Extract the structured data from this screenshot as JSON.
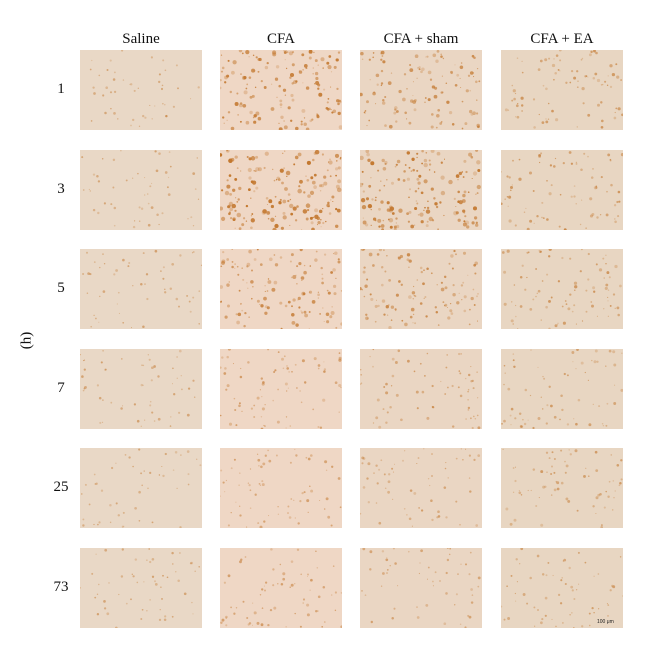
{
  "figure": {
    "columns": [
      {
        "label": "Saline",
        "name": "saline"
      },
      {
        "label": "CFA",
        "name": "cfa"
      },
      {
        "label": "CFA + sham",
        "name": "cfa-sham"
      },
      {
        "label": "CFA + EA",
        "name": "cfa-ea"
      }
    ],
    "rows": [
      {
        "label": "1"
      },
      {
        "label": "3"
      },
      {
        "label": "5"
      },
      {
        "label": "7"
      },
      {
        "label": "25"
      },
      {
        "label": "73"
      }
    ],
    "axis_unit": "(h)",
    "scale_bar": "100 μm",
    "panel_background": [
      "#e9d8c6",
      "#efd7c5",
      "#ead6c3",
      "#e8d6c2"
    ],
    "stain_color": "#c3782f",
    "stain_intensity": [
      [
        0.15,
        0.85,
        0.65,
        0.4
      ],
      [
        0.18,
        1.0,
        0.95,
        0.38
      ],
      [
        0.18,
        0.7,
        0.6,
        0.42
      ],
      [
        0.2,
        0.35,
        0.3,
        0.3
      ],
      [
        0.15,
        0.3,
        0.25,
        0.3
      ],
      [
        0.2,
        0.3,
        0.2,
        0.25
      ]
    ]
  }
}
